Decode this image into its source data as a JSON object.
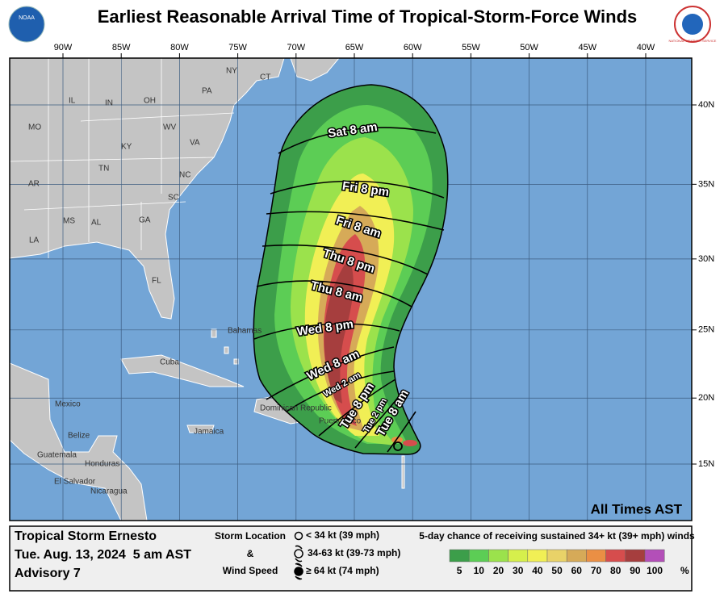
{
  "header": {
    "title": "Earliest Reasonable Arrival Time of Tropical-Storm-Force Winds",
    "logo_left": "NOAA",
    "logo_right": "NATIONAL WEATHER SERVICE"
  },
  "map": {
    "lon_ticks": [
      {
        "value": 90,
        "label": "90W"
      },
      {
        "value": 85,
        "label": "85W"
      },
      {
        "value": 80,
        "label": "80W"
      },
      {
        "value": 75,
        "label": "75W"
      },
      {
        "value": 70,
        "label": "70W"
      },
      {
        "value": 65,
        "label": "65W"
      },
      {
        "value": 60,
        "label": "60W"
      },
      {
        "value": 55,
        "label": "55W"
      },
      {
        "value": 50,
        "label": "50W"
      },
      {
        "value": 45,
        "label": "45W"
      },
      {
        "value": 40,
        "label": "40W"
      }
    ],
    "lat_ticks": [
      {
        "value": 40,
        "label": "40N"
      },
      {
        "value": 35,
        "label": "35N"
      },
      {
        "value": 30,
        "label": "30N"
      },
      {
        "value": 25,
        "label": "25N"
      },
      {
        "value": 20,
        "label": "20N"
      },
      {
        "value": 15,
        "label": "15N"
      }
    ],
    "places": [
      "IL",
      "IN",
      "OH",
      "PA",
      "NY",
      "CT",
      "MO",
      "KY",
      "WV",
      "VA",
      "TN",
      "NC",
      "AR",
      "SC",
      "MS",
      "AL",
      "GA",
      "LA",
      "FL",
      "Bahamas",
      "Cuba",
      "Mexico",
      "Belize",
      "Jamaica",
      "Guatemala",
      "Honduras",
      "El Salvador",
      "Nicaragua",
      "Dominican Republic",
      "Puerto Rico"
    ],
    "contours": [
      "Sat 8 am",
      "Fri 8 pm",
      "Fri 8 am",
      "Thu 8 pm",
      "Thu 8 am",
      "Wed 8 pm",
      "Wed 8 am",
      "Wed 2 am",
      "Tue 8 pm",
      "Tue 2 pm",
      "Tue 8 am"
    ],
    "note": "All Times AST"
  },
  "footer": {
    "storm": "Tropical Storm Ernesto",
    "date": "Tue. Aug. 13, 2024  5 am AST",
    "advisory": "Advisory 7",
    "legend_title": [
      "Storm Location",
      "&",
      "Wind Speed"
    ],
    "symbols": [
      "< 34 kt (39 mph)",
      "34-63 kt (39-73 mph)",
      "≥ 64 kt (74 mph)"
    ],
    "scale_title": "5-day chance of receiving sustained 34+ kt (39+ mph) winds",
    "scale": [
      {
        "value": 5,
        "color": "#3c9e4a"
      },
      {
        "value": 10,
        "color": "#5ccd55"
      },
      {
        "value": 20,
        "color": "#9be24c"
      },
      {
        "value": 30,
        "color": "#d6ef4c"
      },
      {
        "value": 40,
        "color": "#f1ef55"
      },
      {
        "value": 50,
        "color": "#e9d268"
      },
      {
        "value": 60,
        "color": "#d6aa58"
      },
      {
        "value": 70,
        "color": "#ea8f44"
      },
      {
        "value": 80,
        "color": "#d64d4d"
      },
      {
        "value": 90,
        "color": "#a63e3e"
      },
      {
        "value": 100,
        "color": "#b34fb8"
      }
    ],
    "scale_unit": "%"
  }
}
